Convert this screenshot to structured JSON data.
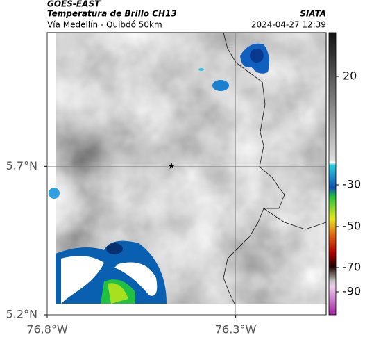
{
  "header": {
    "satellite": "GOES-EAST",
    "product": "Temperatura de Brillo CH13",
    "source": "SIATA",
    "region": "Vía Medellín - Quibdó 50km",
    "timestamp": "2024-04-27 12:39"
  },
  "map": {
    "xlim": [
      -76.8,
      -76.06
    ],
    "ylim": [
      5.2,
      6.15
    ],
    "xticks": [
      {
        "value": -76.8,
        "label": "76.8°W"
      },
      {
        "value": -76.3,
        "label": "76.3°W"
      }
    ],
    "yticks": [
      {
        "value": 5.7,
        "label": "5.7°N"
      },
      {
        "value": 5.2,
        "label": "5.2°N"
      }
    ],
    "marker": {
      "lon": -76.47,
      "lat": 5.7
    }
  },
  "colorbar": {
    "ticks": [
      20,
      -30,
      -50,
      -70,
      -90
    ]
  }
}
